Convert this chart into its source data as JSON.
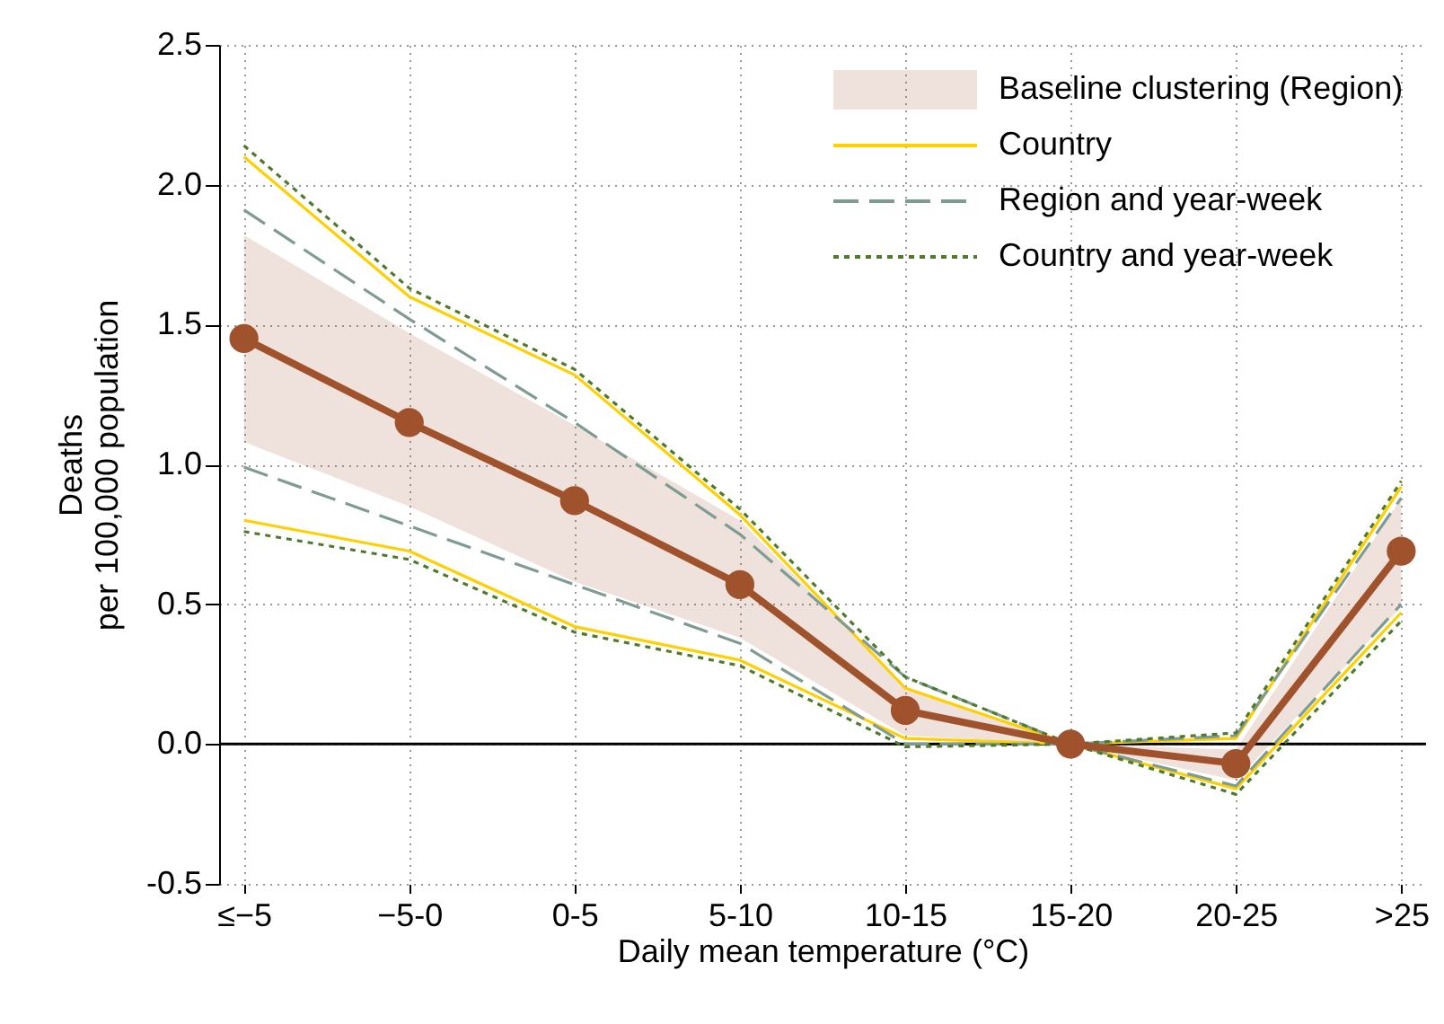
{
  "chart_data": {
    "type": "line",
    "xlabel": "Daily mean temperature (°C)",
    "ylabel": "Deaths\nper 100,000 population",
    "categories": [
      "≤−5",
      "−5-0",
      "0-5",
      "5-10",
      "10-15",
      "15-20",
      "20-25",
      ">25"
    ],
    "series": [
      {
        "name": "Baseline clustering (Region)",
        "color": "#a0522d",
        "marker": "circle",
        "line_style": "solid",
        "values": [
          1.45,
          1.15,
          0.87,
          0.57,
          0.12,
          0.0,
          -0.07,
          0.69
        ],
        "lower": [
          1.08,
          0.85,
          0.58,
          0.38,
          0.03,
          0.0,
          -0.13,
          0.49
        ],
        "upper": [
          1.82,
          1.47,
          1.14,
          0.8,
          0.2,
          0.0,
          -0.02,
          0.88
        ]
      },
      {
        "name": "Country",
        "color": "#ffd000",
        "marker": "none",
        "line_style": "solid",
        "values": [
          2.1,
          1.6,
          1.32,
          0.82,
          0.2,
          0.0,
          0.02,
          0.92
        ]
      },
      {
        "color": "#ffd000",
        "marker": "none",
        "line_style": "solid",
        "values": [
          0.8,
          0.69,
          0.42,
          0.3,
          0.02,
          0.0,
          -0.16,
          0.47
        ]
      },
      {
        "name": "Region and year-week",
        "color": "#7f9c94",
        "marker": "none",
        "line_style": "dashed",
        "values": [
          1.91,
          1.52,
          1.15,
          0.75,
          0.24,
          0.0,
          0.03,
          0.88
        ]
      },
      {
        "color": "#7f9c94",
        "marker": "none",
        "line_style": "dashed",
        "values": [
          0.99,
          0.78,
          0.57,
          0.36,
          0.0,
          0.0,
          -0.15,
          0.5
        ]
      },
      {
        "name": "Country and year-week",
        "color": "#4f7a2c",
        "marker": "none",
        "line_style": "dotted",
        "values": [
          2.14,
          1.63,
          1.34,
          0.84,
          0.24,
          0.0,
          0.04,
          0.94
        ]
      },
      {
        "color": "#4f7a2c",
        "marker": "none",
        "line_style": "dotted",
        "values": [
          0.76,
          0.66,
          0.4,
          0.28,
          -0.01,
          0.0,
          -0.18,
          0.44
        ]
      }
    ],
    "ylim": [
      -0.5,
      2.5
    ],
    "yticks": [
      {
        "value": -0.5,
        "label": "-0.5"
      },
      {
        "value": 0,
        "label": "0.0"
      },
      {
        "value": 0.5,
        "label": "0.5"
      },
      {
        "value": 1,
        "label": "1.0"
      },
      {
        "value": 1.5,
        "label": "1.5"
      },
      {
        "value": 2,
        "label": "2.0"
      },
      {
        "value": 2.5,
        "label": "2.5"
      }
    ],
    "ref_lines": [
      {
        "axis": "y",
        "value": 0,
        "color": "#000000"
      }
    ],
    "grid": true,
    "legend": "top right"
  }
}
